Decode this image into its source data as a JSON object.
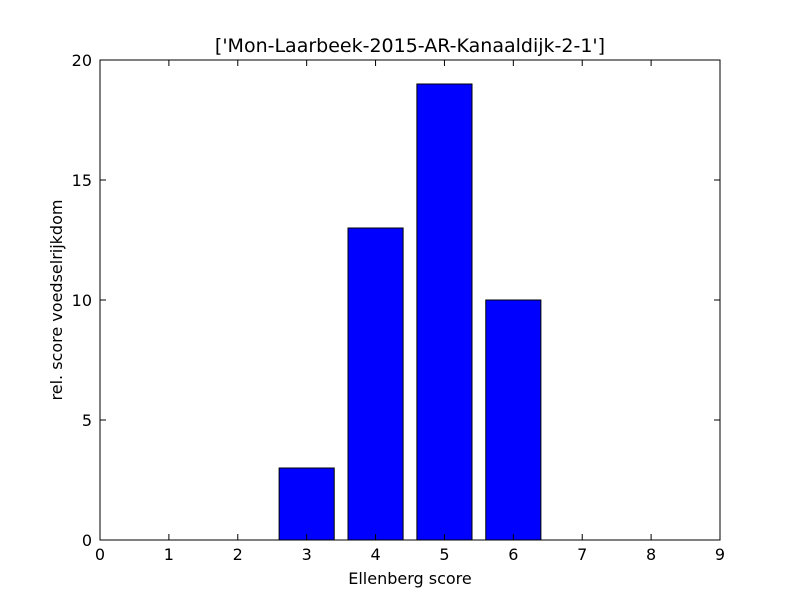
{
  "chart_data": {
    "type": "bar",
    "title": "['Mon-Laarbeek-2015-AR-Kanaaldijk-2-1']",
    "xlabel": "Ellenberg score",
    "ylabel": "rel. score voedselrijkdom",
    "categories": [
      1,
      2,
      3,
      4,
      5,
      6,
      7,
      8
    ],
    "values": [
      0,
      0,
      3,
      13,
      19,
      10,
      0,
      0
    ],
    "bar_width": 0.8,
    "xlim": [
      0,
      9
    ],
    "ylim": [
      0,
      20
    ],
    "xticks": [
      0,
      1,
      2,
      3,
      4,
      5,
      6,
      7,
      8,
      9
    ],
    "yticks": [
      0,
      5,
      10,
      15,
      20
    ],
    "grid": false,
    "bar_color": "#0000ff",
    "edge_color": "#000000"
  }
}
